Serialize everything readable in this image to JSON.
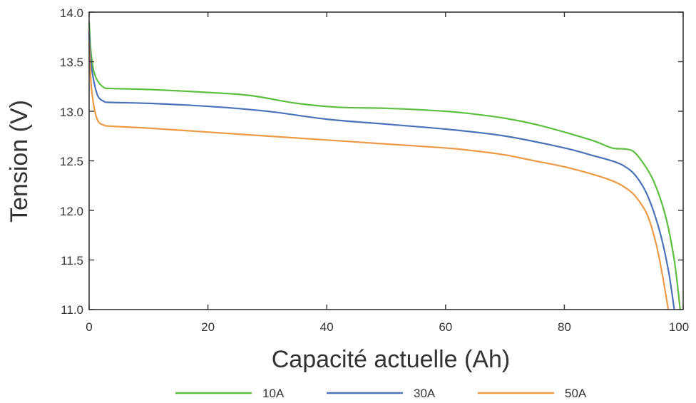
{
  "chart_data": {
    "type": "line",
    "title": "",
    "xlabel": "Capacité actuelle (Ah)",
    "ylabel": "Tension (V)",
    "xlim": [
      0,
      100
    ],
    "ylim": [
      11.0,
      14.0
    ],
    "x_ticks": [
      "0",
      "20",
      "40",
      "60",
      "80",
      "100"
    ],
    "y_ticks": [
      "11.0",
      "11.5",
      "12.0",
      "12.5",
      "13.0",
      "13.5",
      "14.0"
    ],
    "grid": false,
    "legend_position": "bottom",
    "series": [
      {
        "name": "10A",
        "color": "#5cbf3f",
        "x": [
          0,
          0.3,
          0.8,
          1.5,
          2.5,
          3.5,
          10,
          20,
          27,
          35,
          42,
          50,
          60,
          65,
          70,
          75,
          80,
          85,
          88,
          90,
          91.5,
          93,
          95,
          97,
          98.5,
          99.5
        ],
        "y": [
          13.9,
          13.6,
          13.4,
          13.3,
          13.24,
          13.23,
          13.22,
          13.19,
          13.16,
          13.08,
          13.04,
          13.03,
          13.0,
          12.97,
          12.93,
          12.87,
          12.79,
          12.7,
          12.63,
          12.62,
          12.6,
          12.5,
          12.3,
          11.95,
          11.5,
          11.0
        ]
      },
      {
        "name": "30A",
        "color": "#4a72b8",
        "x": [
          0,
          0.3,
          0.8,
          1.5,
          2.5,
          3.5,
          10,
          20,
          30,
          40,
          50,
          60,
          70,
          80,
          85,
          88,
          90,
          92,
          94,
          96,
          97.5,
          98.5
        ],
        "y": [
          13.8,
          13.5,
          13.3,
          13.15,
          13.1,
          13.09,
          13.08,
          13.05,
          13.0,
          12.92,
          12.87,
          12.82,
          12.75,
          12.63,
          12.55,
          12.5,
          12.45,
          12.35,
          12.15,
          11.8,
          11.4,
          11.0
        ]
      },
      {
        "name": "50A",
        "color": "#ed9a45",
        "x": [
          0,
          0.3,
          0.8,
          1.5,
          2.5,
          3.5,
          10,
          20,
          30,
          40,
          50,
          60,
          65,
          70,
          75,
          80,
          85,
          88,
          90,
          92,
          94,
          95.5,
          96.5,
          97.5
        ],
        "y": [
          13.7,
          13.3,
          13.05,
          12.9,
          12.86,
          12.85,
          12.83,
          12.79,
          12.75,
          12.71,
          12.67,
          12.63,
          12.6,
          12.56,
          12.5,
          12.44,
          12.36,
          12.3,
          12.24,
          12.14,
          11.95,
          11.65,
          11.35,
          11.0
        ]
      }
    ]
  }
}
